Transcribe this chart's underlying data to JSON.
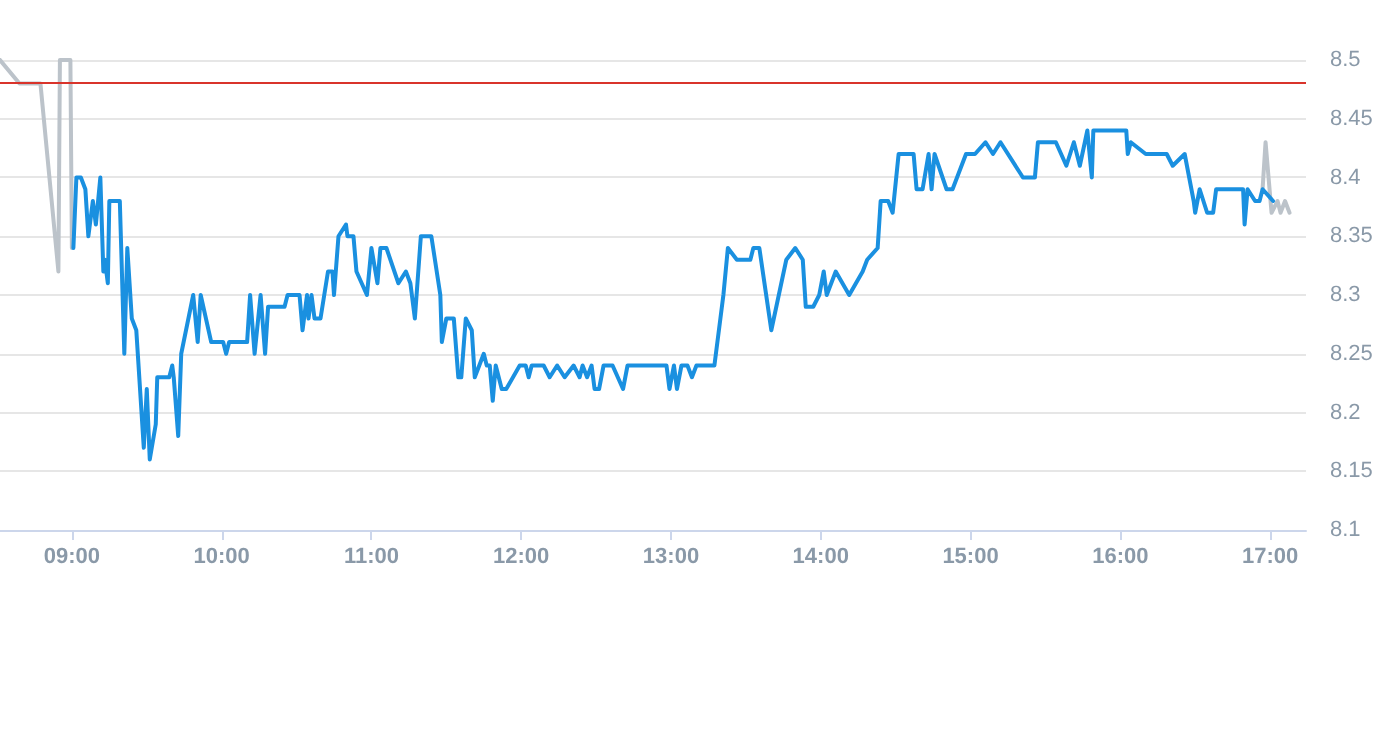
{
  "chart_data": {
    "type": "line",
    "marker": "none",
    "line_style": "solid",
    "grid": "y",
    "xlim": [
      8.52,
      17.24
    ],
    "xticks": [
      {
        "value": 9,
        "label": "09:00"
      },
      {
        "value": 10,
        "label": "10:00"
      },
      {
        "value": 11,
        "label": "11:00"
      },
      {
        "value": 12,
        "label": "12:00"
      },
      {
        "value": 13,
        "label": "13:00"
      },
      {
        "value": 14,
        "label": "14:00"
      },
      {
        "value": 15,
        "label": "15:00"
      },
      {
        "value": 16,
        "label": "16:00"
      },
      {
        "value": 17,
        "label": "17:00"
      }
    ],
    "ylim": [
      8.1,
      8.5
    ],
    "yticks": [
      8.1,
      8.15,
      8.2,
      8.25,
      8.3,
      8.35,
      8.4,
      8.45,
      8.5
    ],
    "ref_lines": [
      {
        "axis": "y",
        "value": 8.48,
        "color": "#d9342b"
      }
    ],
    "series": [
      {
        "color": "#bcc3ca",
        "x": [
          8.52,
          8.65,
          8.79,
          8.91,
          8.92,
          8.99,
          9.0,
          12,
          16.95,
          16.97,
          17.01,
          17.05,
          17.07,
          17.1,
          17.13
        ],
        "values": [
          8.5,
          8.48,
          8.48,
          8.32,
          8.5,
          8.5,
          8.34,
          null,
          8.39,
          8.43,
          8.37,
          8.38,
          8.37,
          8.38,
          8.37
        ]
      },
      {
        "color": "#1a90e0",
        "x": [
          9.01,
          9.03,
          9.06,
          9.09,
          9.11,
          9.14,
          9.16,
          9.19,
          9.21,
          9.22,
          9.24,
          9.25,
          9.32,
          9.35,
          9.37,
          9.4,
          9.43,
          9.44,
          9.48,
          9.5,
          9.52,
          9.56,
          9.57,
          9.65,
          9.67,
          9.68,
          9.71,
          9.73,
          9.81,
          9.84,
          9.86,
          9.93,
          10.01,
          10.03,
          10.05,
          10.17,
          10.19,
          10.22,
          10.26,
          10.29,
          10.31,
          10.42,
          10.44,
          10.52,
          10.54,
          10.57,
          10.58,
          10.6,
          10.62,
          10.66,
          10.71,
          10.74,
          10.75,
          10.78,
          10.83,
          10.84,
          10.88,
          10.9,
          10.97,
          11.0,
          11.04,
          11.06,
          11.1,
          11.18,
          11.23,
          11.26,
          11.29,
          11.33,
          11.4,
          11.46,
          11.47,
          11.5,
          11.55,
          11.58,
          11.6,
          11.63,
          11.67,
          11.69,
          11.72,
          11.75,
          11.77,
          11.79,
          11.81,
          11.83,
          11.87,
          11.9,
          11.99,
          12.03,
          12.05,
          12.07,
          12.15,
          12.19,
          12.24,
          12.29,
          12.35,
          12.39,
          12.41,
          12.44,
          12.47,
          12.49,
          12.52,
          12.55,
          12.61,
          12.68,
          12.71,
          12.97,
          12.99,
          13.02,
          13.04,
          13.07,
          13.11,
          13.14,
          13.17,
          13.29,
          13.33,
          13.35,
          13.38,
          13.44,
          13.53,
          13.55,
          13.59,
          13.67,
          13.77,
          13.83,
          13.88,
          13.9,
          13.95,
          13.99,
          14.02,
          14.04,
          14.1,
          14.19,
          14.28,
          14.31,
          14.38,
          14.4,
          14.45,
          14.48,
          14.52,
          14.62,
          14.64,
          14.68,
          14.72,
          14.74,
          14.76,
          14.84,
          14.88,
          14.97,
          15.03,
          15.1,
          15.15,
          15.2,
          15.35,
          15.43,
          15.45,
          15.57,
          15.64,
          15.69,
          15.73,
          15.78,
          15.81,
          15.82,
          16.04,
          16.05,
          16.07,
          16.17,
          16.31,
          16.35,
          16.43,
          16.49,
          16.5,
          16.53,
          16.58,
          16.62,
          16.64,
          16.82,
          16.83,
          16.85,
          16.9,
          16.93,
          16.95,
          17.02
        ],
        "values": [
          8.34,
          8.4,
          8.4,
          8.39,
          8.35,
          8.38,
          8.36,
          8.4,
          8.32,
          8.33,
          8.31,
          8.38,
          8.38,
          8.25,
          8.34,
          8.28,
          8.27,
          8.25,
          8.17,
          8.22,
          8.16,
          8.19,
          8.23,
          8.23,
          8.24,
          8.23,
          8.18,
          8.25,
          8.3,
          8.26,
          8.3,
          8.26,
          8.26,
          8.25,
          8.26,
          8.26,
          8.3,
          8.25,
          8.3,
          8.25,
          8.29,
          8.29,
          8.3,
          8.3,
          8.27,
          8.3,
          8.28,
          8.3,
          8.28,
          8.28,
          8.32,
          8.32,
          8.3,
          8.35,
          8.36,
          8.35,
          8.35,
          8.32,
          8.3,
          8.34,
          8.31,
          8.34,
          8.34,
          8.31,
          8.32,
          8.31,
          8.28,
          8.35,
          8.35,
          8.3,
          8.26,
          8.28,
          8.28,
          8.23,
          8.23,
          8.28,
          8.27,
          8.23,
          8.24,
          8.25,
          8.24,
          8.24,
          8.21,
          8.24,
          8.22,
          8.22,
          8.24,
          8.24,
          8.23,
          8.24,
          8.24,
          8.23,
          8.24,
          8.23,
          8.24,
          8.23,
          8.24,
          8.23,
          8.24,
          8.22,
          8.22,
          8.24,
          8.24,
          8.22,
          8.24,
          8.24,
          8.22,
          8.24,
          8.22,
          8.24,
          8.24,
          8.23,
          8.24,
          8.24,
          8.28,
          8.3,
          8.34,
          8.33,
          8.33,
          8.34,
          8.34,
          8.27,
          8.33,
          8.34,
          8.33,
          8.29,
          8.29,
          8.3,
          8.32,
          8.3,
          8.32,
          8.3,
          8.32,
          8.33,
          8.34,
          8.38,
          8.38,
          8.37,
          8.42,
          8.42,
          8.39,
          8.39,
          8.42,
          8.39,
          8.42,
          8.39,
          8.39,
          8.42,
          8.42,
          8.43,
          8.42,
          8.43,
          8.4,
          8.4,
          8.43,
          8.43,
          8.41,
          8.43,
          8.41,
          8.44,
          8.4,
          8.44,
          8.44,
          8.42,
          8.43,
          8.42,
          8.42,
          8.41,
          8.42,
          8.38,
          8.37,
          8.39,
          8.37,
          8.37,
          8.39,
          8.39,
          8.36,
          8.39,
          8.38,
          8.38,
          8.39,
          8.38
        ]
      }
    ]
  }
}
